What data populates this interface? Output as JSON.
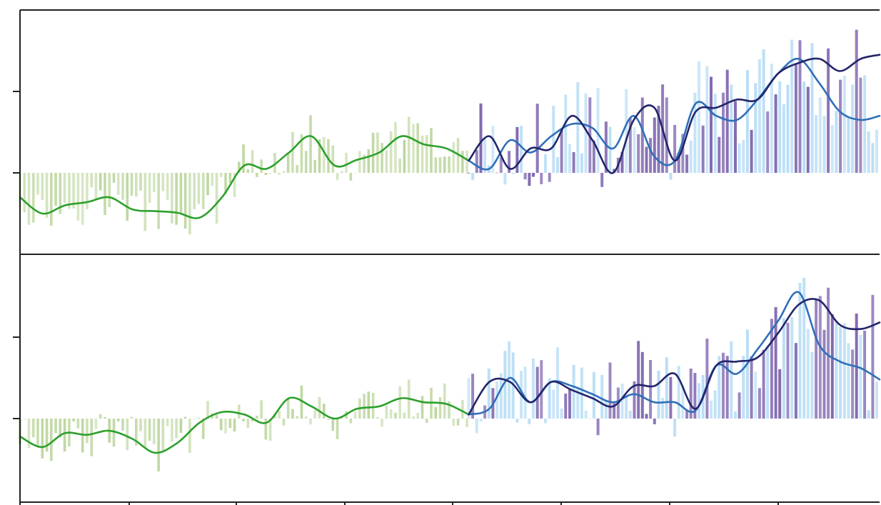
{
  "chart_data": [
    {
      "type": "bar",
      "title": "",
      "xlabel": "",
      "ylabel": "",
      "grid": false,
      "legend": "none",
      "xlim": [
        0,
        1
      ],
      "ylim": [
        -1,
        2
      ],
      "colors": {
        "historical_bar": "#b9d49a",
        "historical_line": "#2ca02c",
        "scenario_a_bar": "#7b62ad",
        "scenario_a_line": "#23256b",
        "scenario_b_bar": "#b6dcf4",
        "scenario_b_line": "#2f6fb8"
      },
      "series": [
        {
          "key": "historical",
          "x": [
            0.0,
            0.026,
            0.052,
            0.078,
            0.104,
            0.131,
            0.157,
            0.183,
            0.209,
            0.235,
            0.261,
            0.287,
            0.313,
            0.339,
            0.366,
            0.392,
            0.418,
            0.444,
            0.47,
            0.496,
            0.522
          ],
          "values": [
            -0.3,
            -0.5,
            -0.4,
            -0.36,
            -0.3,
            -0.45,
            -0.47,
            -0.49,
            -0.55,
            -0.3,
            0.09,
            0.05,
            0.25,
            0.45,
            0.09,
            0.16,
            0.25,
            0.45,
            0.35,
            0.3,
            0.15
          ]
        },
        {
          "key": "scenario_a",
          "x": [
            0.522,
            0.546,
            0.57,
            0.594,
            0.618,
            0.642,
            0.666,
            0.69,
            0.714,
            0.738,
            0.762,
            0.786,
            0.81,
            0.834,
            0.858,
            0.882,
            0.906,
            0.93,
            0.954,
            0.978,
            1.0
          ],
          "values": [
            0.15,
            0.45,
            0.05,
            0.3,
            0.3,
            0.7,
            0.4,
            0.0,
            0.65,
            0.8,
            0.15,
            0.75,
            0.8,
            0.9,
            0.9,
            1.22,
            1.35,
            1.4,
            1.25,
            1.4,
            1.45
          ]
        },
        {
          "key": "scenario_b",
          "x": [
            0.522,
            0.546,
            0.57,
            0.594,
            0.618,
            0.642,
            0.666,
            0.69,
            0.714,
            0.738,
            0.762,
            0.786,
            0.81,
            0.834,
            0.858,
            0.882,
            0.906,
            0.93,
            0.954,
            0.978,
            1.0
          ],
          "values": [
            0.15,
            0.05,
            0.4,
            0.25,
            0.45,
            0.6,
            0.55,
            0.3,
            0.7,
            0.2,
            0.15,
            0.85,
            0.7,
            0.65,
            0.9,
            1.22,
            1.4,
            1.1,
            0.75,
            0.65,
            0.7
          ]
        }
      ]
    },
    {
      "type": "bar",
      "title": "",
      "xlabel": "",
      "ylabel": "",
      "grid": false,
      "legend": "none",
      "xlim": [
        0,
        1
      ],
      "ylim": [
        -1,
        2
      ],
      "colors": {
        "historical_bar": "#b9d49a",
        "historical_line": "#2ca02c",
        "scenario_a_bar": "#7b62ad",
        "scenario_a_line": "#23256b",
        "scenario_b_bar": "#b6dcf4",
        "scenario_b_line": "#2f6fb8"
      },
      "series": [
        {
          "key": "historical",
          "x": [
            0.0,
            0.026,
            0.052,
            0.078,
            0.104,
            0.131,
            0.157,
            0.183,
            0.209,
            0.235,
            0.261,
            0.287,
            0.313,
            0.339,
            0.366,
            0.392,
            0.418,
            0.444,
            0.47,
            0.496,
            0.522
          ],
          "values": [
            -0.22,
            -0.35,
            -0.18,
            -0.2,
            -0.15,
            -0.25,
            -0.42,
            -0.3,
            -0.05,
            0.08,
            0.05,
            -0.05,
            0.25,
            0.15,
            0.0,
            0.12,
            0.15,
            0.25,
            0.2,
            0.18,
            0.05
          ]
        },
        {
          "key": "scenario_a",
          "x": [
            0.522,
            0.546,
            0.57,
            0.594,
            0.618,
            0.642,
            0.666,
            0.69,
            0.714,
            0.738,
            0.762,
            0.786,
            0.81,
            0.834,
            0.858,
            0.882,
            0.906,
            0.93,
            0.954,
            0.978,
            1.0
          ],
          "values": [
            0.05,
            0.45,
            0.45,
            0.2,
            0.45,
            0.35,
            0.25,
            0.15,
            0.4,
            0.4,
            0.55,
            0.12,
            0.65,
            0.7,
            0.75,
            1.05,
            1.4,
            1.45,
            1.15,
            1.1,
            1.18
          ]
        },
        {
          "key": "scenario_b",
          "x": [
            0.522,
            0.546,
            0.57,
            0.594,
            0.618,
            0.642,
            0.666,
            0.69,
            0.714,
            0.738,
            0.762,
            0.786,
            0.81,
            0.834,
            0.858,
            0.882,
            0.906,
            0.93,
            0.954,
            0.978,
            1.0
          ],
          "values": [
            0.05,
            0.12,
            0.5,
            0.2,
            0.45,
            0.4,
            0.3,
            0.2,
            0.3,
            0.2,
            0.2,
            0.1,
            0.65,
            0.55,
            0.85,
            1.2,
            1.55,
            0.9,
            0.7,
            0.62,
            0.48
          ]
        }
      ]
    }
  ]
}
